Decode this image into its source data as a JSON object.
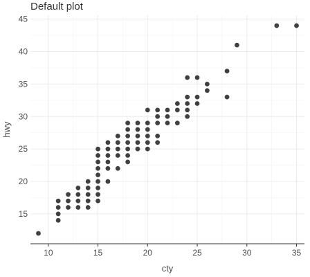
{
  "chart_data": {
    "type": "scatter",
    "title": "Default plot",
    "xlabel": "cty",
    "ylabel": "hwy",
    "xlim": [
      8.2,
      35.8
    ],
    "ylim": [
      10.4,
      45.6
    ],
    "x_ticks": [
      10,
      15,
      20,
      25,
      30,
      35
    ],
    "y_ticks": [
      15,
      20,
      25,
      30,
      35,
      40,
      45
    ],
    "grid": true,
    "point_color": "#404040",
    "axis_color": "#333333",
    "grid_color": "#ebebeb",
    "points": [
      [
        9,
        12
      ],
      [
        11,
        14
      ],
      [
        11,
        15
      ],
      [
        11,
        16
      ],
      [
        11,
        17
      ],
      [
        12,
        16
      ],
      [
        12,
        17
      ],
      [
        12,
        18
      ],
      [
        13,
        16
      ],
      [
        13,
        17
      ],
      [
        13,
        18
      ],
      [
        13,
        19
      ],
      [
        14,
        16
      ],
      [
        14,
        17
      ],
      [
        14,
        18
      ],
      [
        14,
        19
      ],
      [
        14,
        20
      ],
      [
        15,
        17
      ],
      [
        15,
        18
      ],
      [
        15,
        19
      ],
      [
        15,
        20
      ],
      [
        15,
        21
      ],
      [
        15,
        22
      ],
      [
        15,
        23
      ],
      [
        15,
        24
      ],
      [
        15,
        25
      ],
      [
        16,
        20
      ],
      [
        16,
        22
      ],
      [
        16,
        23
      ],
      [
        16,
        24
      ],
      [
        16,
        25
      ],
      [
        16,
        26
      ],
      [
        17,
        22
      ],
      [
        17,
        24
      ],
      [
        17,
        25
      ],
      [
        17,
        26
      ],
      [
        17,
        27
      ],
      [
        18,
        23
      ],
      [
        18,
        24
      ],
      [
        18,
        25
      ],
      [
        18,
        26
      ],
      [
        18,
        27
      ],
      [
        18,
        28
      ],
      [
        18,
        29
      ],
      [
        19,
        25
      ],
      [
        19,
        26
      ],
      [
        19,
        27
      ],
      [
        19,
        28
      ],
      [
        19,
        29
      ],
      [
        20,
        25
      ],
      [
        20,
        26
      ],
      [
        20,
        27
      ],
      [
        20,
        28
      ],
      [
        20,
        29
      ],
      [
        20,
        31
      ],
      [
        21,
        26
      ],
      [
        21,
        27
      ],
      [
        21,
        29
      ],
      [
        21,
        30
      ],
      [
        21,
        31
      ],
      [
        22,
        29
      ],
      [
        22,
        30
      ],
      [
        22,
        31
      ],
      [
        23,
        29
      ],
      [
        23,
        31
      ],
      [
        23,
        32
      ],
      [
        24,
        30
      ],
      [
        24,
        31
      ],
      [
        24,
        32
      ],
      [
        24,
        33
      ],
      [
        24,
        36
      ],
      [
        25,
        32
      ],
      [
        25,
        33
      ],
      [
        25,
        36
      ],
      [
        26,
        34
      ],
      [
        26,
        35
      ],
      [
        28,
        33
      ],
      [
        28,
        37
      ],
      [
        29,
        41
      ],
      [
        33,
        44
      ],
      [
        35,
        44
      ]
    ]
  }
}
